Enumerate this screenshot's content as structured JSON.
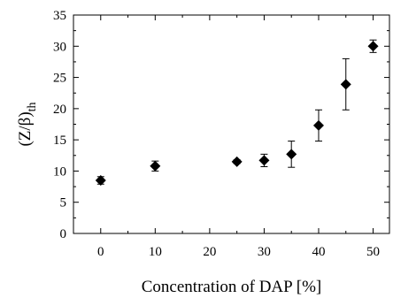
{
  "chart_data": {
    "type": "scatter",
    "title": "",
    "xlabel": "Concentration of DAP [%]",
    "ylabel_main": "(Z/β)",
    "ylabel_sub": "th",
    "xlim": [
      -5,
      53
    ],
    "ylim": [
      0,
      35
    ],
    "xticks": [
      0,
      10,
      20,
      30,
      40,
      50
    ],
    "yticks": [
      0,
      5,
      10,
      15,
      20,
      25,
      30,
      35
    ],
    "grid": false,
    "marker": "diamond",
    "marker_color": "#000000",
    "points": [
      {
        "x": 0,
        "y": 8.5,
        "err": 0.6
      },
      {
        "x": 10,
        "y": 10.8,
        "err": 0.8
      },
      {
        "x": 25,
        "y": 11.5,
        "err": 0.3
      },
      {
        "x": 30,
        "y": 11.7,
        "err": 1.0
      },
      {
        "x": 35,
        "y": 12.7,
        "err": 2.1
      },
      {
        "x": 40,
        "y": 17.3,
        "err": 2.5
      },
      {
        "x": 45,
        "y": 23.9,
        "err": 4.1
      },
      {
        "x": 50,
        "y": 30.0,
        "err": 1.0
      }
    ]
  }
}
